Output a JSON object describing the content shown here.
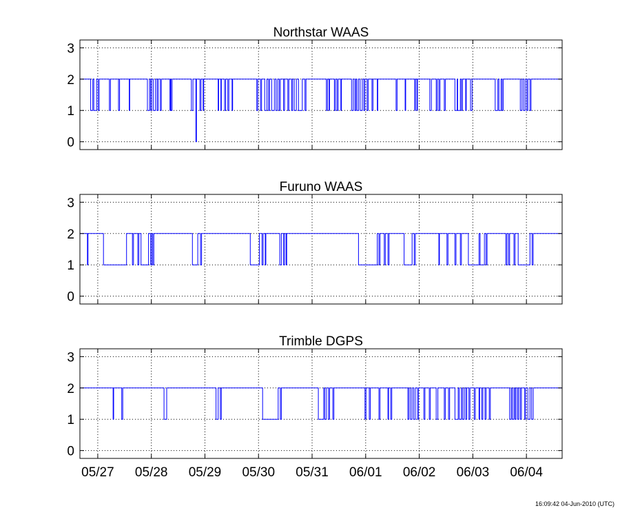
{
  "footer": {
    "timestamp": "16:09:42 04-Jun-2010 (UTC)"
  },
  "chart_data": [
    {
      "type": "line",
      "title": "Northstar WAAS",
      "xlabel": "",
      "ylabel": "",
      "x_range": [
        "05/26 16:00",
        "06/04 16:00"
      ],
      "ylim": [
        -0.25,
        3.25
      ],
      "yticks": [
        0,
        1,
        2,
        3
      ],
      "grid": true,
      "color": "#0000ff",
      "step_baseline": 2,
      "drops_to_1_days": [
        [
          0.2,
          0.24
        ],
        [
          0.26,
          0.31
        ],
        [
          0.34,
          0.36
        ],
        [
          0.55,
          0.57
        ],
        [
          0.72,
          0.74
        ],
        [
          0.92,
          0.93
        ],
        [
          1.26,
          1.3
        ],
        [
          1.32,
          1.34
        ],
        [
          1.37,
          1.41
        ],
        [
          1.44,
          1.46
        ],
        [
          1.5,
          1.52
        ],
        [
          1.68,
          1.69
        ],
        [
          1.7,
          1.72
        ],
        [
          2.08,
          2.11
        ],
        [
          2.24,
          2.26
        ],
        [
          2.3,
          2.31
        ],
        [
          2.58,
          2.59
        ],
        [
          2.63,
          2.64
        ],
        [
          2.7,
          2.72
        ],
        [
          2.76,
          2.78
        ],
        [
          2.84,
          2.85
        ],
        [
          3.3,
          3.32
        ],
        [
          3.37,
          3.39
        ],
        [
          3.45,
          3.49
        ],
        [
          3.52,
          3.54
        ],
        [
          3.58,
          3.63
        ],
        [
          3.66,
          3.69
        ],
        [
          3.72,
          3.74
        ],
        [
          3.8,
          3.82
        ],
        [
          3.88,
          3.9
        ],
        [
          3.95,
          3.97
        ],
        [
          4.0,
          4.04
        ],
        [
          4.08,
          4.15
        ],
        [
          4.2,
          4.22
        ],
        [
          4.6,
          4.62
        ],
        [
          4.65,
          4.66
        ],
        [
          4.75,
          4.77
        ],
        [
          4.8,
          4.82
        ],
        [
          4.87,
          4.88
        ],
        [
          5.07,
          5.1
        ],
        [
          5.13,
          5.15
        ],
        [
          5.17,
          5.2
        ],
        [
          5.23,
          5.27
        ],
        [
          5.3,
          5.32
        ],
        [
          5.36,
          5.38
        ],
        [
          5.45,
          5.47
        ],
        [
          5.55,
          5.56
        ],
        [
          5.9,
          5.92
        ],
        [
          6.07,
          6.08
        ],
        [
          6.25,
          6.26
        ],
        [
          6.29,
          6.3
        ],
        [
          6.53,
          6.56
        ],
        [
          6.65,
          6.67
        ],
        [
          6.7,
          6.72
        ],
        [
          6.8,
          6.82
        ],
        [
          7.0,
          7.04
        ],
        [
          7.05,
          7.1
        ],
        [
          7.12,
          7.14
        ],
        [
          7.2,
          7.21
        ],
        [
          7.29,
          7.32
        ],
        [
          7.75,
          7.8
        ],
        [
          7.82,
          7.86
        ],
        [
          7.88,
          7.9
        ],
        [
          8.22,
          8.25
        ],
        [
          8.28,
          8.31
        ],
        [
          8.34,
          8.36
        ],
        [
          8.4,
          8.42
        ]
      ],
      "drops_to_0_days": [
        [
          2.165,
          2.175
        ]
      ]
    },
    {
      "type": "line",
      "title": "Furuno WAAS",
      "xlabel": "",
      "ylabel": "",
      "x_range": [
        "05/26 16:00",
        "06/04 16:00"
      ],
      "ylim": [
        -0.25,
        3.25
      ],
      "yticks": [
        0,
        1,
        2,
        3
      ],
      "grid": true,
      "color": "#0000ff",
      "step_baseline": 2,
      "drops_to_1_days": [
        [
          0.14,
          0.15
        ],
        [
          0.44,
          0.87
        ],
        [
          0.98,
          1.0
        ],
        [
          1.08,
          1.1
        ],
        [
          1.14,
          1.28
        ],
        [
          1.32,
          1.34
        ],
        [
          1.36,
          1.38
        ],
        [
          2.1,
          2.2
        ],
        [
          2.25,
          2.27
        ],
        [
          3.18,
          3.35
        ],
        [
          3.4,
          3.42
        ],
        [
          3.46,
          3.47
        ],
        [
          3.73,
          3.76
        ],
        [
          3.8,
          3.82
        ],
        [
          3.85,
          3.86
        ],
        [
          5.2,
          5.55
        ],
        [
          5.58,
          5.6
        ],
        [
          5.68,
          5.7
        ],
        [
          5.75,
          5.77
        ],
        [
          6.05,
          6.2
        ],
        [
          6.24,
          6.26
        ],
        [
          6.7,
          6.71
        ],
        [
          6.85,
          6.87
        ],
        [
          7.0,
          7.02
        ],
        [
          7.1,
          7.12
        ],
        [
          7.25,
          7.45
        ],
        [
          7.47,
          7.55
        ],
        [
          7.58,
          7.6
        ],
        [
          7.95,
          7.97
        ],
        [
          8.0,
          8.02
        ],
        [
          8.1,
          8.12
        ],
        [
          8.18,
          8.4
        ],
        [
          8.44,
          8.46
        ]
      ],
      "drops_to_0_days": []
    },
    {
      "type": "line",
      "title": "Trimble DGPS",
      "xlabel": "",
      "ylabel": "",
      "x_range": [
        "05/26 16:00",
        "06/04 16:00"
      ],
      "ylim": [
        -0.25,
        3.25
      ],
      "yticks": [
        0,
        1,
        2,
        3
      ],
      "grid": true,
      "color": "#0000ff",
      "step_baseline": 2,
      "drops_to_1_days": [
        [
          0.62,
          0.63
        ],
        [
          0.78,
          0.8
        ],
        [
          1.57,
          1.62
        ],
        [
          2.54,
          2.58
        ],
        [
          2.62,
          2.64
        ],
        [
          3.41,
          3.7
        ],
        [
          3.74,
          3.76
        ],
        [
          4.45,
          4.55
        ],
        [
          4.57,
          4.6
        ],
        [
          4.64,
          4.66
        ],
        [
          4.72,
          4.74
        ],
        [
          5.32,
          5.34
        ],
        [
          5.4,
          5.42
        ],
        [
          5.58,
          5.6
        ],
        [
          5.75,
          5.76
        ],
        [
          5.8,
          5.82
        ],
        [
          6.12,
          6.14
        ],
        [
          6.17,
          6.2
        ],
        [
          6.23,
          6.26
        ],
        [
          6.3,
          6.32
        ],
        [
          6.42,
          6.44
        ],
        [
          6.52,
          6.54
        ],
        [
          6.65,
          6.68
        ],
        [
          6.8,
          6.82
        ],
        [
          6.88,
          6.9
        ],
        [
          7.0,
          7.06
        ],
        [
          7.08,
          7.12
        ],
        [
          7.14,
          7.17
        ],
        [
          7.2,
          7.22
        ],
        [
          7.26,
          7.28
        ],
        [
          7.36,
          7.38
        ],
        [
          7.45,
          7.46
        ],
        [
          7.5,
          7.52
        ],
        [
          7.56,
          7.58
        ],
        [
          7.64,
          7.66
        ],
        [
          8.02,
          8.05
        ],
        [
          8.07,
          8.1
        ],
        [
          8.12,
          8.14
        ],
        [
          8.17,
          8.19
        ],
        [
          8.22,
          8.24
        ],
        [
          8.3,
          8.32
        ],
        [
          8.36,
          8.4
        ],
        [
          8.43,
          8.46
        ]
      ],
      "drops_to_0_days": []
    }
  ],
  "x_ticks": [
    {
      "label": "05/27",
      "day": 0.3333
    },
    {
      "label": "05/28",
      "day": 1.3333
    },
    {
      "label": "05/29",
      "day": 2.3333
    },
    {
      "label": "05/30",
      "day": 3.3333
    },
    {
      "label": "05/31",
      "day": 4.3333
    },
    {
      "label": "06/01",
      "day": 5.3333
    },
    {
      "label": "06/02",
      "day": 6.3333
    },
    {
      "label": "06/03",
      "day": 7.3333
    },
    {
      "label": "06/04",
      "day": 8.3333
    }
  ]
}
